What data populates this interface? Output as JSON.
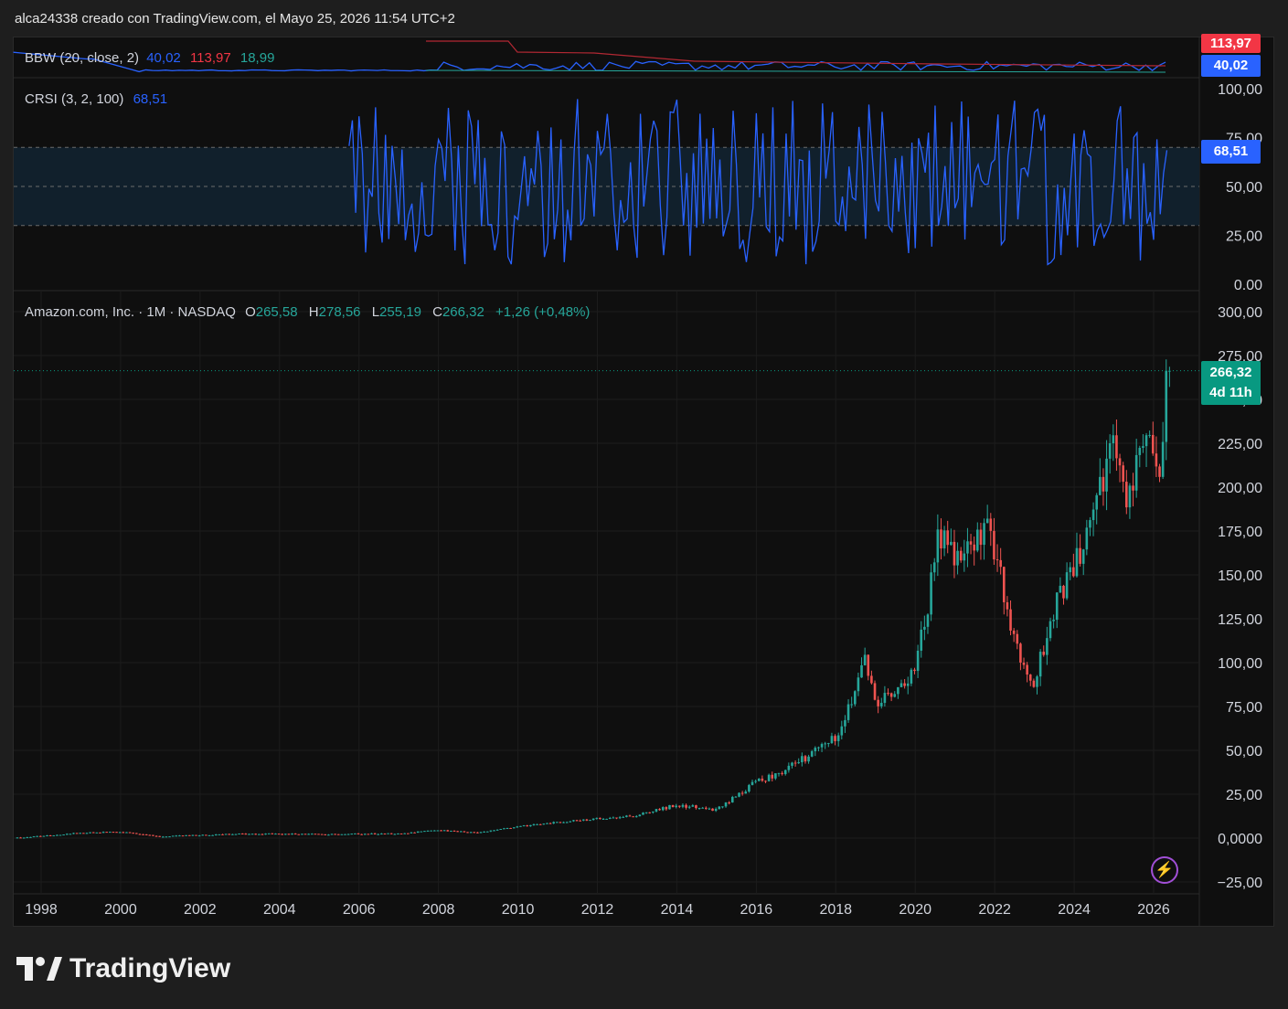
{
  "caption": "alca24338 creado con TradingView.com, el Mayo 25, 2026 11:54 UTC+2",
  "brand": {
    "name": "TradingView"
  },
  "colors": {
    "up": "#26a69a",
    "down": "#ef5350",
    "crsi": "#2962ff",
    "bbw_upper": "#b22833",
    "bbw_lower": "#26a69a"
  },
  "bbw": {
    "label": "BBW (20, close, 2)",
    "value": "40,02",
    "upper": "113,97",
    "lower": "18,99",
    "tag_upper": "113,97",
    "tag_value": "40,02"
  },
  "crsi": {
    "label": "CRSI (3, 2, 100)",
    "value": "68,51",
    "tag": "68,51",
    "y_ticks": [
      "100,00",
      "75,00",
      "50,00",
      "25,00",
      "0.00"
    ],
    "band_upper": 70,
    "band_lower": 30
  },
  "price": {
    "symbol": "Amazon.com, Inc. · 1M · NASDAQ",
    "o_label": "O",
    "o": "265,58",
    "h_label": "H",
    "h": "278,56",
    "l_label": "L",
    "l": "255,19",
    "c_label": "C",
    "c": "266,32",
    "change": "+1,26 (+0,48%)",
    "last_tag": "266,32",
    "countdown": "4d 11h",
    "y_ticks": [
      "300,00",
      "275,00",
      "250,00",
      "225,00",
      "200,00",
      "175,00",
      "150,00",
      "125,00",
      "100,00",
      "75,00",
      "50,00",
      "25,00",
      "0,0000",
      "−25,00"
    ]
  },
  "chart_data": {
    "type": "candlestick",
    "title": "Amazon.com, Inc. · 1M · NASDAQ",
    "x_ticks": [
      "1998",
      "2000",
      "2002",
      "2004",
      "2006",
      "2008",
      "2010",
      "2012",
      "2014",
      "2016",
      "2018",
      "2020",
      "2022",
      "2024",
      "2026"
    ],
    "ylim": [
      -25,
      300
    ],
    "last_close": 266.32,
    "approx_close_by_year": [
      {
        "year": 1997.5,
        "close": 0.1
      },
      {
        "year": 1999.0,
        "close": 3.0
      },
      {
        "year": 2000.0,
        "close": 3.5
      },
      {
        "year": 2001.0,
        "close": 0.8
      },
      {
        "year": 2003.0,
        "close": 2.5
      },
      {
        "year": 2005.0,
        "close": 2.2
      },
      {
        "year": 2007.0,
        "close": 2.5
      },
      {
        "year": 2008.0,
        "close": 4.5
      },
      {
        "year": 2009.0,
        "close": 3.0
      },
      {
        "year": 2010.0,
        "close": 6.5
      },
      {
        "year": 2011.0,
        "close": 9.0
      },
      {
        "year": 2012.0,
        "close": 11.0
      },
      {
        "year": 2013.0,
        "close": 13.0
      },
      {
        "year": 2014.0,
        "close": 19.0
      },
      {
        "year": 2015.0,
        "close": 16.0
      },
      {
        "year": 2016.0,
        "close": 32.0
      },
      {
        "year": 2017.0,
        "close": 42.0
      },
      {
        "year": 2018.0,
        "close": 58.0
      },
      {
        "year": 2018.75,
        "close": 100.0
      },
      {
        "year": 2019.0,
        "close": 77.0
      },
      {
        "year": 2020.0,
        "close": 93.0
      },
      {
        "year": 2020.6,
        "close": 172.0
      },
      {
        "year": 2021.0,
        "close": 162.0
      },
      {
        "year": 2021.9,
        "close": 175.0
      },
      {
        "year": 2022.5,
        "close": 115.0
      },
      {
        "year": 2022.95,
        "close": 84.0
      },
      {
        "year": 2023.5,
        "close": 130.0
      },
      {
        "year": 2024.0,
        "close": 155.0
      },
      {
        "year": 2024.5,
        "close": 185.0
      },
      {
        "year": 2025.0,
        "close": 230.0
      },
      {
        "year": 2025.3,
        "close": 185.0
      },
      {
        "year": 2025.6,
        "close": 225.0
      },
      {
        "year": 2025.9,
        "close": 240.0
      },
      {
        "year": 2026.1,
        "close": 205.0
      },
      {
        "year": 2026.4,
        "close": 266.32
      }
    ],
    "crsi_series": {
      "name": "CRSI (3, 2, 100)",
      "ylim": [
        0,
        100
      ],
      "last": 68.51
    },
    "bbw_series": {
      "name": "BBW (20, close, 2)",
      "last": 40.02,
      "upper": 113.97,
      "lower": 18.99
    }
  }
}
